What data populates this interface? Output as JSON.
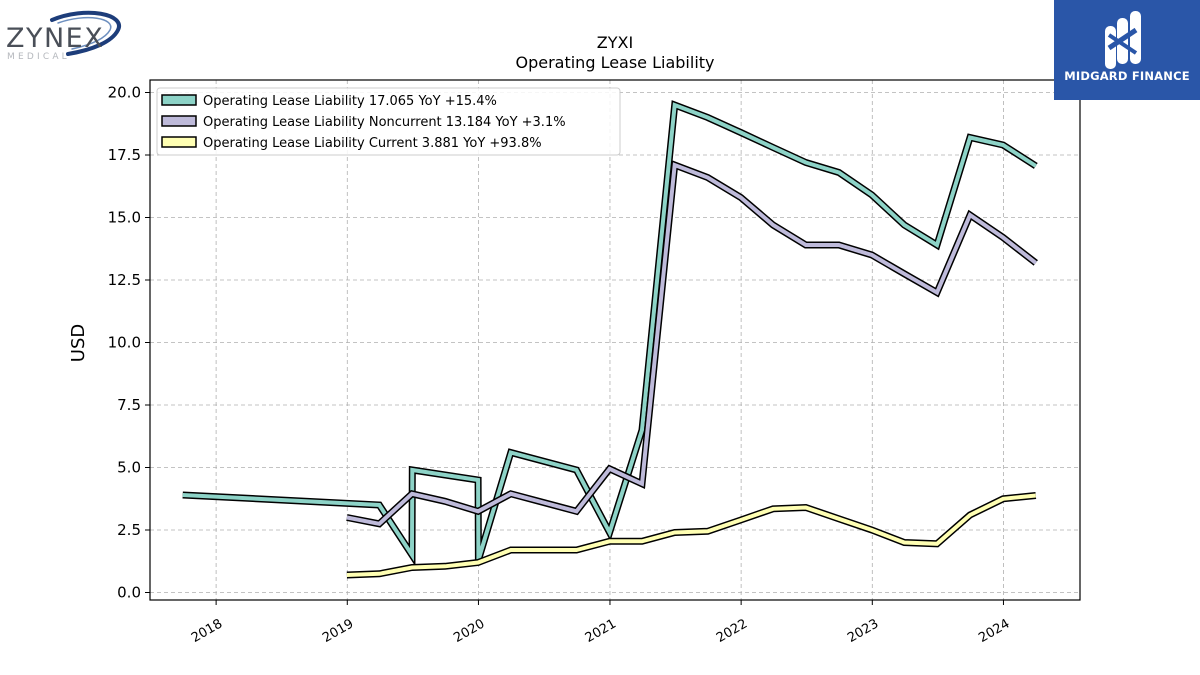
{
  "logo_left": {
    "name": "ZYNEX",
    "tagline": "MEDICAL"
  },
  "logo_right": {
    "name": "MIDGARD FINANCE",
    "bg_color": "#2a56a8"
  },
  "chart_data": {
    "type": "line",
    "title": "ZYXI",
    "subtitle": "Operating Lease Liability",
    "ylabel": "USD",
    "xlabel": "",
    "ylim": [
      -0.3,
      20.5
    ],
    "yticks": [
      0.0,
      2.5,
      5.0,
      7.5,
      10.0,
      12.5,
      15.0,
      17.5,
      20.0
    ],
    "ytick_labels": [
      "0.0",
      "2.5",
      "5.0",
      "7.5",
      "10.0",
      "12.5",
      "15.0",
      "17.5",
      "20.0"
    ],
    "xlim": [
      "2017-07-01",
      "2024-08-01"
    ],
    "xticks": [
      "2018-01-01",
      "2019-01-01",
      "2020-01-01",
      "2021-01-01",
      "2022-01-01",
      "2023-01-01",
      "2024-01-01"
    ],
    "xtick_labels": [
      "2018",
      "2019",
      "2020",
      "2021",
      "2022",
      "2023",
      "2024"
    ],
    "grid": true,
    "legend_position": "top-left",
    "series": [
      {
        "name": "Operating Lease Liability  17.065 YoY +15.4%",
        "color": "#8dd3c7",
        "x": [
          "2017-09-30",
          "2019-03-31",
          "2019-06-30",
          "2019-07-01",
          "2019-12-31",
          "2020-01-01",
          "2020-03-31",
          "2020-09-30",
          "2020-12-31",
          "2021-03-31",
          "2021-06-30",
          "2021-09-30",
          "2021-12-31",
          "2022-03-31",
          "2022-06-30",
          "2022-09-30",
          "2022-12-31",
          "2023-03-31",
          "2023-06-30",
          "2023-09-30",
          "2023-12-31",
          "2024-03-31"
        ],
        "y": [
          3.9,
          3.5,
          1.5,
          4.9,
          4.5,
          1.3,
          5.6,
          4.9,
          2.4,
          6.5,
          19.5,
          19.0,
          18.4,
          17.8,
          17.2,
          16.8,
          15.9,
          14.7,
          13.9,
          18.2,
          17.9,
          17.065
        ]
      },
      {
        "name": "Operating Lease Liability Noncurrent  13.184 YoY +3.1%",
        "color": "#bebada",
        "x": [
          "2018-12-31",
          "2019-03-31",
          "2019-06-30",
          "2019-09-30",
          "2019-12-31",
          "2020-03-31",
          "2020-06-30",
          "2020-09-30",
          "2020-12-31",
          "2021-03-31",
          "2021-06-30",
          "2021-09-30",
          "2021-12-31",
          "2022-03-31",
          "2022-06-30",
          "2022-09-30",
          "2022-12-31",
          "2023-03-31",
          "2023-06-30",
          "2023-09-30",
          "2023-12-31",
          "2024-03-31"
        ],
        "y": [
          3.0,
          2.75,
          3.95,
          3.65,
          3.25,
          3.95,
          3.6,
          3.25,
          4.95,
          4.35,
          17.1,
          16.6,
          15.8,
          14.7,
          13.9,
          13.9,
          13.5,
          12.75,
          12.0,
          15.1,
          14.2,
          13.184
        ]
      },
      {
        "name": "Operating Lease Liability Current  3.881 YoY +93.8%",
        "color": "#ffffb3",
        "x": [
          "2018-12-31",
          "2019-03-31",
          "2019-06-30",
          "2019-09-30",
          "2019-12-31",
          "2020-03-31",
          "2020-06-30",
          "2020-09-30",
          "2020-12-31",
          "2021-03-31",
          "2021-06-30",
          "2021-09-30",
          "2021-12-31",
          "2022-03-31",
          "2022-06-30",
          "2022-09-30",
          "2022-12-31",
          "2023-03-31",
          "2023-06-30",
          "2023-09-30",
          "2023-12-31",
          "2024-03-31"
        ],
        "y": [
          0.7,
          0.75,
          1.0,
          1.05,
          1.2,
          1.7,
          1.7,
          1.7,
          2.05,
          2.05,
          2.4,
          2.45,
          2.9,
          3.35,
          3.4,
          2.95,
          2.5,
          2.0,
          1.95,
          3.1,
          3.75,
          3.881
        ]
      }
    ]
  }
}
